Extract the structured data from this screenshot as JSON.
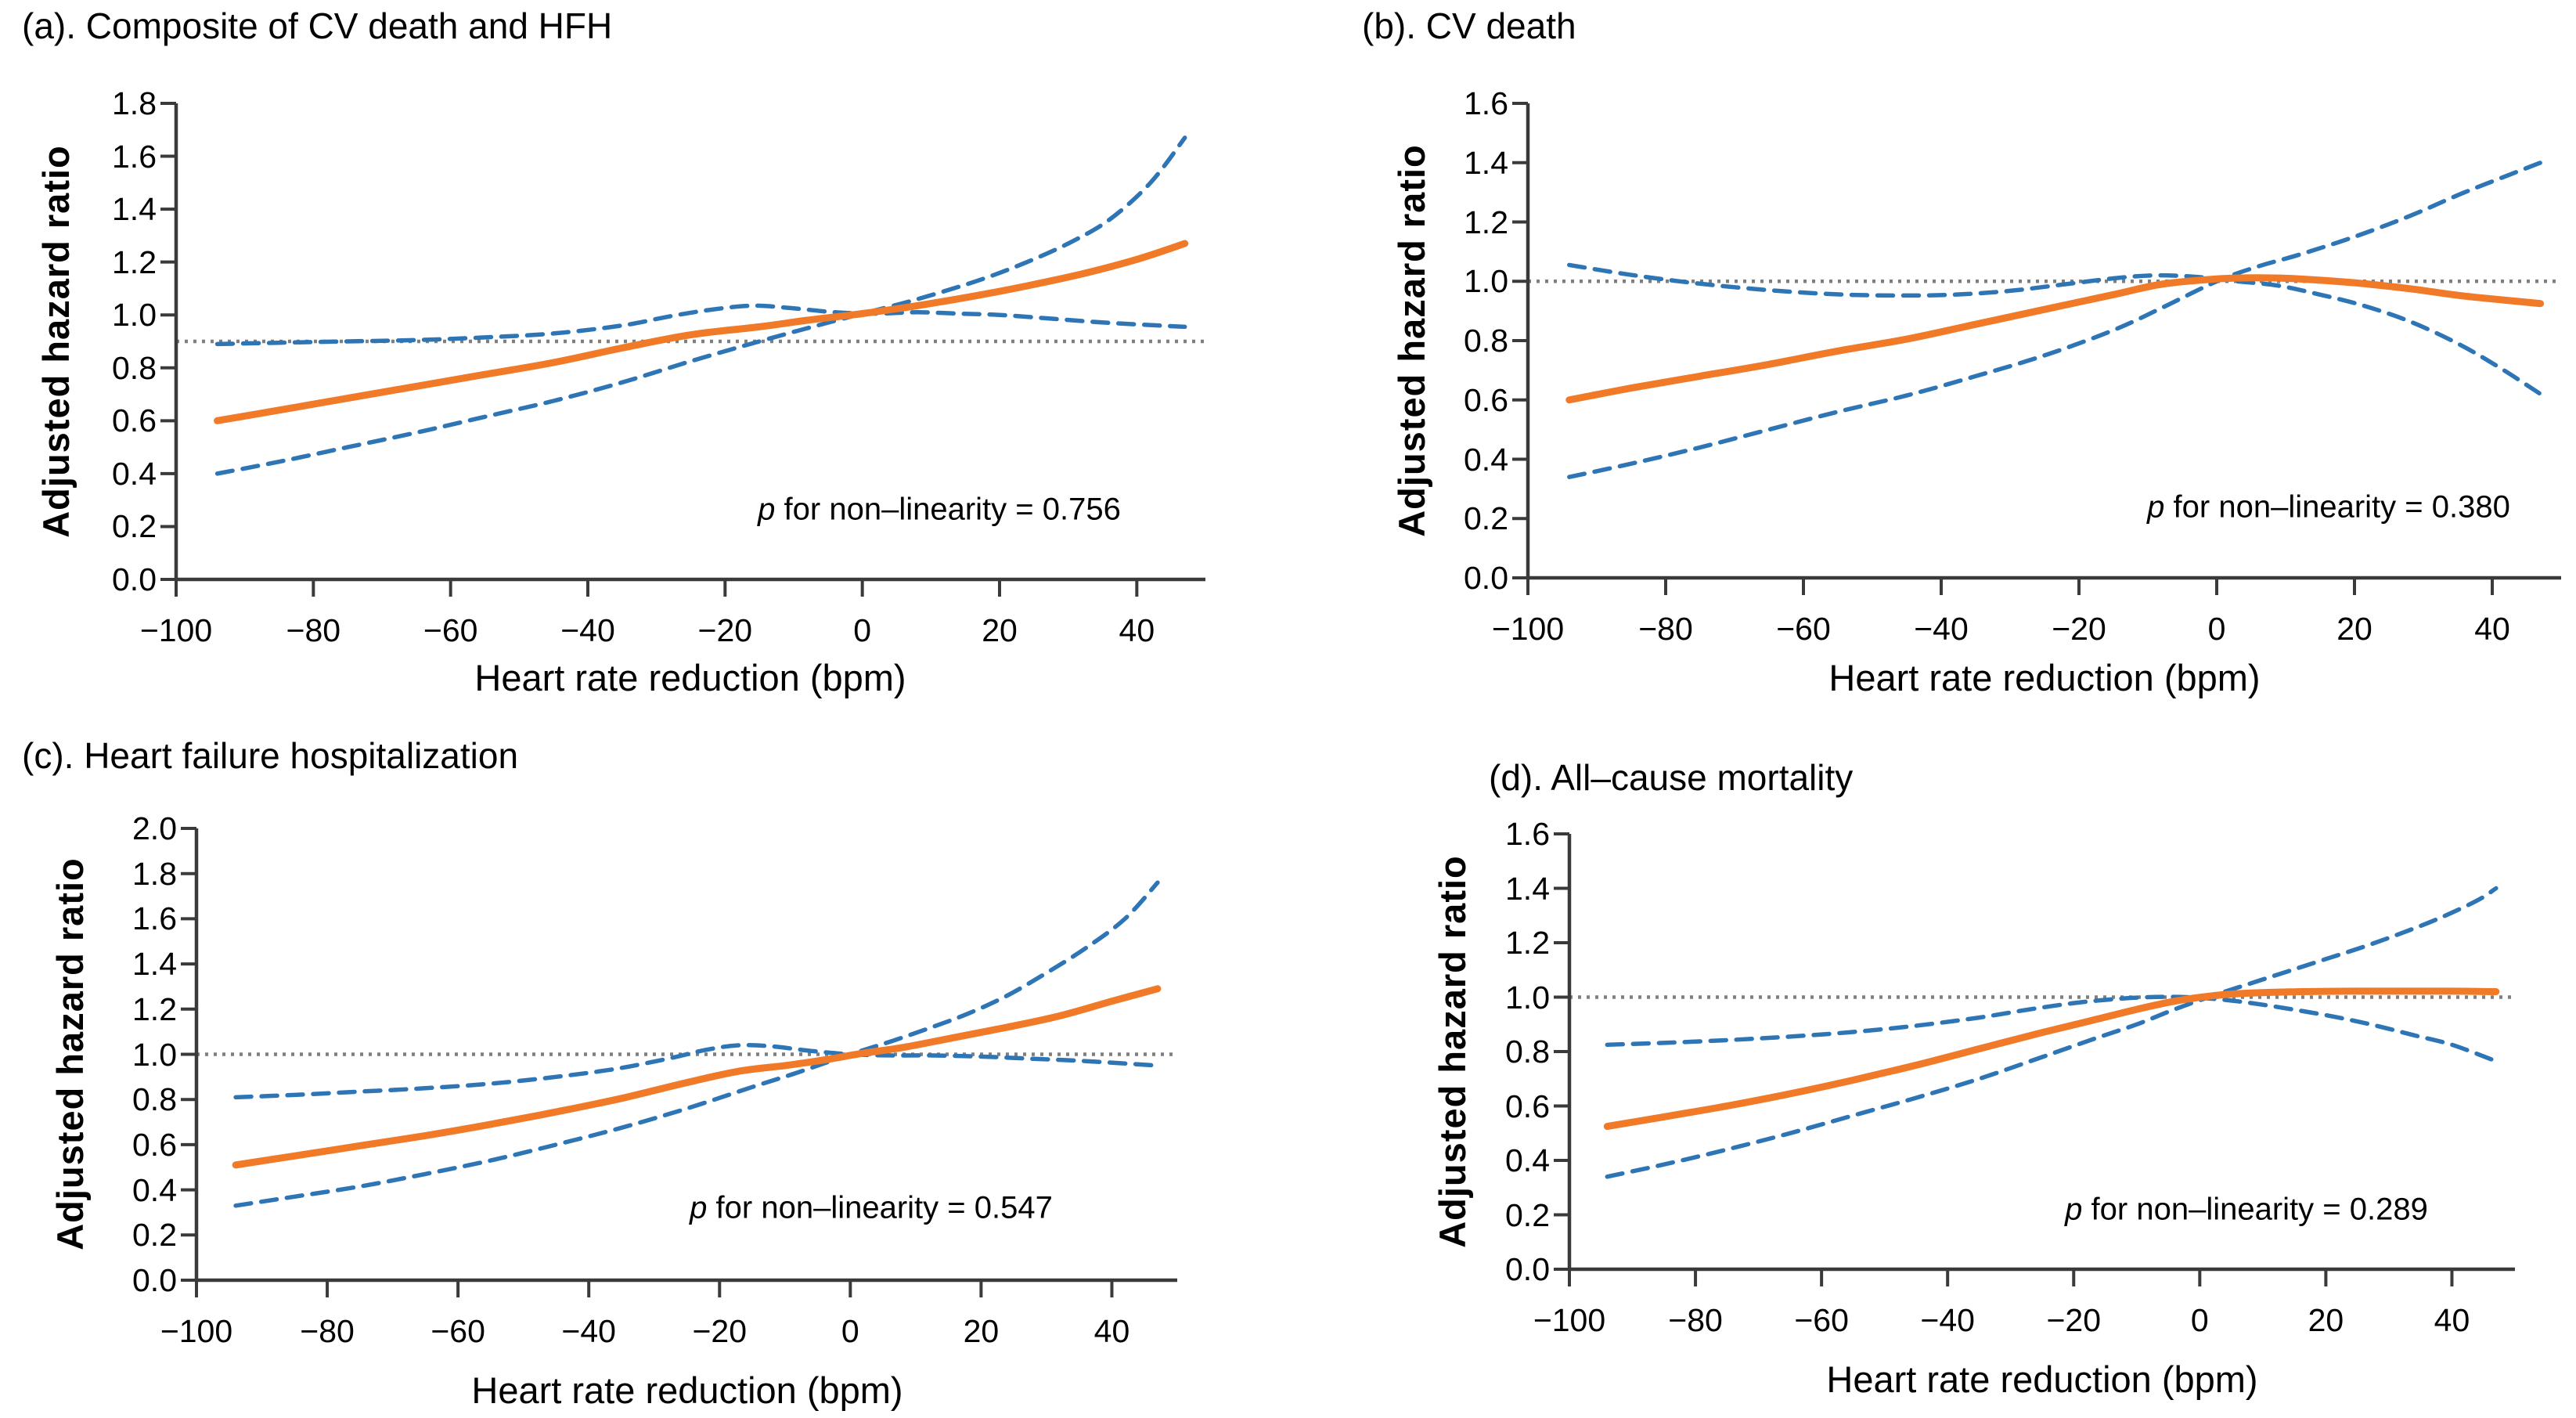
{
  "figure": {
    "background": "#FFFFFF",
    "estimate_color": "#F07A28",
    "ci_color": "#2E75B6",
    "reference_color": "#7F7F7F",
    "axis_color": "#3A3A3A",
    "y_axis_label": "Adjusted hazard ratio",
    "x_axis_label": "Heart rate reduction (bpm)"
  },
  "chart_data": [
    {
      "id": "a",
      "type": "line",
      "title": "(a). Composite of CV death and HFH",
      "xlabel": "Heart rate reduction (bpm)",
      "ylabel": "Adjusted hazard ratio",
      "xlim": [
        -100,
        50
      ],
      "ylim": [
        0,
        1.8
      ],
      "x_ticks": [
        -100,
        -80,
        -60,
        -40,
        -20,
        0,
        20,
        40
      ],
      "x_tick_labels": [
        "−100",
        "−80",
        "−60",
        "−40",
        "−20",
        "0",
        "20",
        "40"
      ],
      "y_ticks": [
        0,
        0.2,
        0.4,
        0.6,
        0.8,
        1.0,
        1.2,
        1.4,
        1.6,
        1.8
      ],
      "y_tick_labels": [
        "0.0",
        "0.2",
        "0.4",
        "0.6",
        "0.8",
        "1.0",
        "1.2",
        "1.4",
        "1.6",
        "1.8"
      ],
      "reference_line_y": 0.9,
      "grid": false,
      "legend": "none",
      "p_for_nonlinearity": 0.756,
      "annotation": {
        "symbol": "p",
        "text": " for non–linearity = 0.756"
      },
      "series": [
        {
          "name": "adjusted-hazard-ratio",
          "role": "estimate",
          "style": "solid",
          "x": [
            -94,
            -85,
            -75,
            -65,
            -55,
            -45,
            -35,
            -25,
            -15,
            -8,
            0,
            8,
            16,
            24,
            32,
            40,
            47
          ],
          "y": [
            0.6,
            0.64,
            0.685,
            0.73,
            0.775,
            0.82,
            0.875,
            0.925,
            0.955,
            0.98,
            1.005,
            1.035,
            1.07,
            1.11,
            1.155,
            1.21,
            1.27
          ]
        },
        {
          "name": "ci-band-flat",
          "role": "ci",
          "style": "dashed",
          "x": [
            -94,
            -85,
            -75,
            -65,
            -55,
            -45,
            -35,
            -28,
            -22,
            -16,
            -10,
            -4,
            2,
            8,
            14,
            20,
            28,
            36,
            47
          ],
          "y": [
            0.89,
            0.895,
            0.9,
            0.905,
            0.915,
            0.93,
            0.96,
            0.995,
            1.02,
            1.035,
            1.025,
            1.01,
            1.005,
            1.01,
            1.005,
            1.0,
            0.985,
            0.97,
            0.955
          ]
        },
        {
          "name": "ci-band-steep",
          "role": "ci",
          "style": "dashed",
          "x": [
            -94,
            -85,
            -75,
            -65,
            -55,
            -45,
            -35,
            -25,
            -15,
            -8,
            0,
            6,
            12,
            18,
            24,
            30,
            36,
            42,
            47
          ],
          "y": [
            0.4,
            0.445,
            0.5,
            0.555,
            0.615,
            0.675,
            0.745,
            0.825,
            0.9,
            0.95,
            1.005,
            1.045,
            1.09,
            1.14,
            1.2,
            1.27,
            1.36,
            1.5,
            1.67
          ]
        }
      ]
    },
    {
      "id": "b",
      "type": "line",
      "title": "(b). CV death",
      "xlabel": "Heart rate reduction (bpm)",
      "ylabel": "Adjusted hazard ratio",
      "xlim": [
        -100,
        50
      ],
      "ylim": [
        0,
        1.6
      ],
      "x_ticks": [
        -100,
        -80,
        -60,
        -40,
        -20,
        0,
        20,
        40
      ],
      "x_tick_labels": [
        "−100",
        "−80",
        "−60",
        "−40",
        "−20",
        "0",
        "20",
        "40"
      ],
      "y_ticks": [
        0,
        0.2,
        0.4,
        0.6,
        0.8,
        1.0,
        1.2,
        1.4,
        1.6
      ],
      "y_tick_labels": [
        "0.0",
        "0.2",
        "0.4",
        "0.6",
        "0.8",
        "1.0",
        "1.2",
        "1.4",
        "1.6"
      ],
      "reference_line_y": 1.0,
      "grid": false,
      "legend": "none",
      "p_for_nonlinearity": 0.38,
      "annotation": {
        "symbol": "p",
        "text": " for non–linearity = 0.380"
      },
      "series": [
        {
          "name": "adjusted-hazard-ratio",
          "role": "estimate",
          "style": "solid",
          "x": [
            -94,
            -85,
            -75,
            -65,
            -55,
            -45,
            -35,
            -25,
            -15,
            -8,
            0,
            6,
            12,
            20,
            28,
            36,
            47
          ],
          "y": [
            0.6,
            0.64,
            0.68,
            0.72,
            0.765,
            0.805,
            0.855,
            0.905,
            0.955,
            0.99,
            1.008,
            1.012,
            1.008,
            0.995,
            0.975,
            0.95,
            0.925
          ]
        },
        {
          "name": "ci-band-flat",
          "role": "ci",
          "style": "dashed",
          "x": [
            -94,
            -86,
            -78,
            -70,
            -62,
            -54,
            -46,
            -38,
            -30,
            -22,
            -15,
            -9,
            -3,
            3,
            9,
            15,
            21,
            28,
            35,
            41,
            47
          ],
          "y": [
            1.055,
            1.025,
            1.0,
            0.98,
            0.965,
            0.955,
            0.952,
            0.955,
            0.968,
            0.99,
            1.01,
            1.02,
            1.015,
            1.0,
            0.985,
            0.955,
            0.92,
            0.865,
            0.79,
            0.71,
            0.62
          ]
        },
        {
          "name": "ci-band-steep",
          "role": "ci",
          "style": "dashed",
          "x": [
            -94,
            -85,
            -75,
            -65,
            -55,
            -45,
            -35,
            -25,
            -15,
            -8,
            0,
            6,
            12,
            20,
            28,
            36,
            47
          ],
          "y": [
            0.34,
            0.385,
            0.44,
            0.5,
            0.56,
            0.615,
            0.68,
            0.75,
            0.835,
            0.91,
            1.0,
            1.05,
            1.09,
            1.15,
            1.22,
            1.3,
            1.4
          ]
        }
      ]
    },
    {
      "id": "c",
      "type": "line",
      "title": "(c). Heart failure hospitalization",
      "xlabel": "Heart rate reduction (bpm)",
      "ylabel": "Adjusted hazard ratio",
      "xlim": [
        -100,
        50
      ],
      "ylim": [
        0,
        2.0
      ],
      "x_ticks": [
        -100,
        -80,
        -60,
        -40,
        -20,
        0,
        20,
        40
      ],
      "x_tick_labels": [
        "−100",
        "−80",
        "−60",
        "−40",
        "−20",
        "0",
        "20",
        "40"
      ],
      "y_ticks": [
        0,
        0.2,
        0.4,
        0.6,
        0.8,
        1.0,
        1.2,
        1.4,
        1.6,
        1.8,
        2.0
      ],
      "y_tick_labels": [
        "0.0",
        "0.2",
        "0.4",
        "0.6",
        "0.8",
        "1.0",
        "1.2",
        "1.4",
        "1.6",
        "1.8",
        "2.0"
      ],
      "reference_line_y": 1.0,
      "grid": false,
      "legend": "none",
      "p_for_nonlinearity": 0.547,
      "annotation": {
        "symbol": "p",
        "text": " for non–linearity = 0.547"
      },
      "series": [
        {
          "name": "adjusted-hazard-ratio",
          "role": "estimate",
          "style": "solid",
          "x": [
            -94,
            -85,
            -75,
            -65,
            -55,
            -45,
            -35,
            -25,
            -17,
            -10,
            -4,
            2,
            8,
            16,
            24,
            32,
            40,
            47
          ],
          "y": [
            0.51,
            0.55,
            0.595,
            0.64,
            0.69,
            0.745,
            0.805,
            0.875,
            0.925,
            0.95,
            0.975,
            1.005,
            1.03,
            1.075,
            1.12,
            1.17,
            1.235,
            1.29
          ]
        },
        {
          "name": "ci-band-flat",
          "role": "ci",
          "style": "dashed",
          "x": [
            -94,
            -85,
            -75,
            -65,
            -55,
            -45,
            -36,
            -28,
            -22,
            -17,
            -12,
            -6,
            0,
            6,
            12,
            20,
            28,
            36,
            47
          ],
          "y": [
            0.81,
            0.82,
            0.835,
            0.85,
            0.87,
            0.9,
            0.935,
            0.98,
            1.02,
            1.04,
            1.035,
            1.015,
            1.0,
            0.995,
            0.995,
            0.99,
            0.98,
            0.97,
            0.95
          ]
        },
        {
          "name": "ci-band-steep",
          "role": "ci",
          "style": "dashed",
          "x": [
            -94,
            -85,
            -75,
            -65,
            -55,
            -45,
            -35,
            -25,
            -15,
            -8,
            0,
            6,
            12,
            18,
            24,
            30,
            36,
            42,
            47
          ],
          "y": [
            0.33,
            0.37,
            0.415,
            0.47,
            0.53,
            0.6,
            0.675,
            0.76,
            0.855,
            0.92,
            1.0,
            1.055,
            1.115,
            1.18,
            1.26,
            1.36,
            1.47,
            1.6,
            1.76
          ]
        }
      ]
    },
    {
      "id": "d",
      "type": "line",
      "title": "(d). All–cause mortality",
      "xlabel": "Heart rate reduction (bpm)",
      "ylabel": "Adjusted hazard ratio",
      "xlim": [
        -100,
        50
      ],
      "ylim": [
        0,
        1.6
      ],
      "x_ticks": [
        -100,
        -80,
        -60,
        -40,
        -20,
        0,
        20,
        40
      ],
      "x_tick_labels": [
        "−100",
        "−80",
        "−60",
        "−40",
        "−20",
        "0",
        "20",
        "40"
      ],
      "y_ticks": [
        0,
        0.2,
        0.4,
        0.6,
        0.8,
        1.0,
        1.2,
        1.4,
        1.6
      ],
      "y_tick_labels": [
        "0.0",
        "0.2",
        "0.4",
        "0.6",
        "0.8",
        "1.0",
        "1.2",
        "1.4",
        "1.6"
      ],
      "reference_line_y": 1.0,
      "grid": false,
      "legend": "none",
      "p_for_nonlinearity": 0.289,
      "annotation": {
        "symbol": "p",
        "text": " for non–linearity = 0.289"
      },
      "series": [
        {
          "name": "adjusted-hazard-ratio",
          "role": "estimate",
          "style": "solid",
          "x": [
            -94,
            -85,
            -75,
            -65,
            -55,
            -45,
            -35,
            -25,
            -17,
            -10,
            -4,
            2,
            8,
            16,
            24,
            32,
            40,
            47
          ],
          "y": [
            0.525,
            0.56,
            0.6,
            0.645,
            0.695,
            0.75,
            0.81,
            0.87,
            0.915,
            0.955,
            0.985,
            1.005,
            1.015,
            1.02,
            1.022,
            1.022,
            1.022,
            1.02
          ]
        },
        {
          "name": "ci-band-flat",
          "role": "ci",
          "style": "dashed",
          "x": [
            -94,
            -85,
            -75,
            -65,
            -55,
            -45,
            -35,
            -27,
            -20,
            -14,
            -8,
            -2,
            4,
            10,
            16,
            22,
            28,
            34,
            40,
            47
          ],
          "y": [
            0.825,
            0.832,
            0.842,
            0.855,
            0.872,
            0.895,
            0.925,
            0.955,
            0.978,
            0.992,
            1.0,
            1.0,
            0.99,
            0.972,
            0.95,
            0.925,
            0.895,
            0.86,
            0.825,
            0.765
          ]
        },
        {
          "name": "ci-band-steep",
          "role": "ci",
          "style": "dashed",
          "x": [
            -94,
            -85,
            -75,
            -65,
            -55,
            -45,
            -35,
            -25,
            -17,
            -10,
            -4,
            2,
            8,
            14,
            20,
            26,
            32,
            38,
            44,
            47
          ],
          "y": [
            0.34,
            0.385,
            0.44,
            0.5,
            0.565,
            0.63,
            0.7,
            0.78,
            0.845,
            0.9,
            0.955,
            1.005,
            1.05,
            1.095,
            1.14,
            1.185,
            1.235,
            1.29,
            1.355,
            1.4
          ]
        }
      ]
    }
  ]
}
